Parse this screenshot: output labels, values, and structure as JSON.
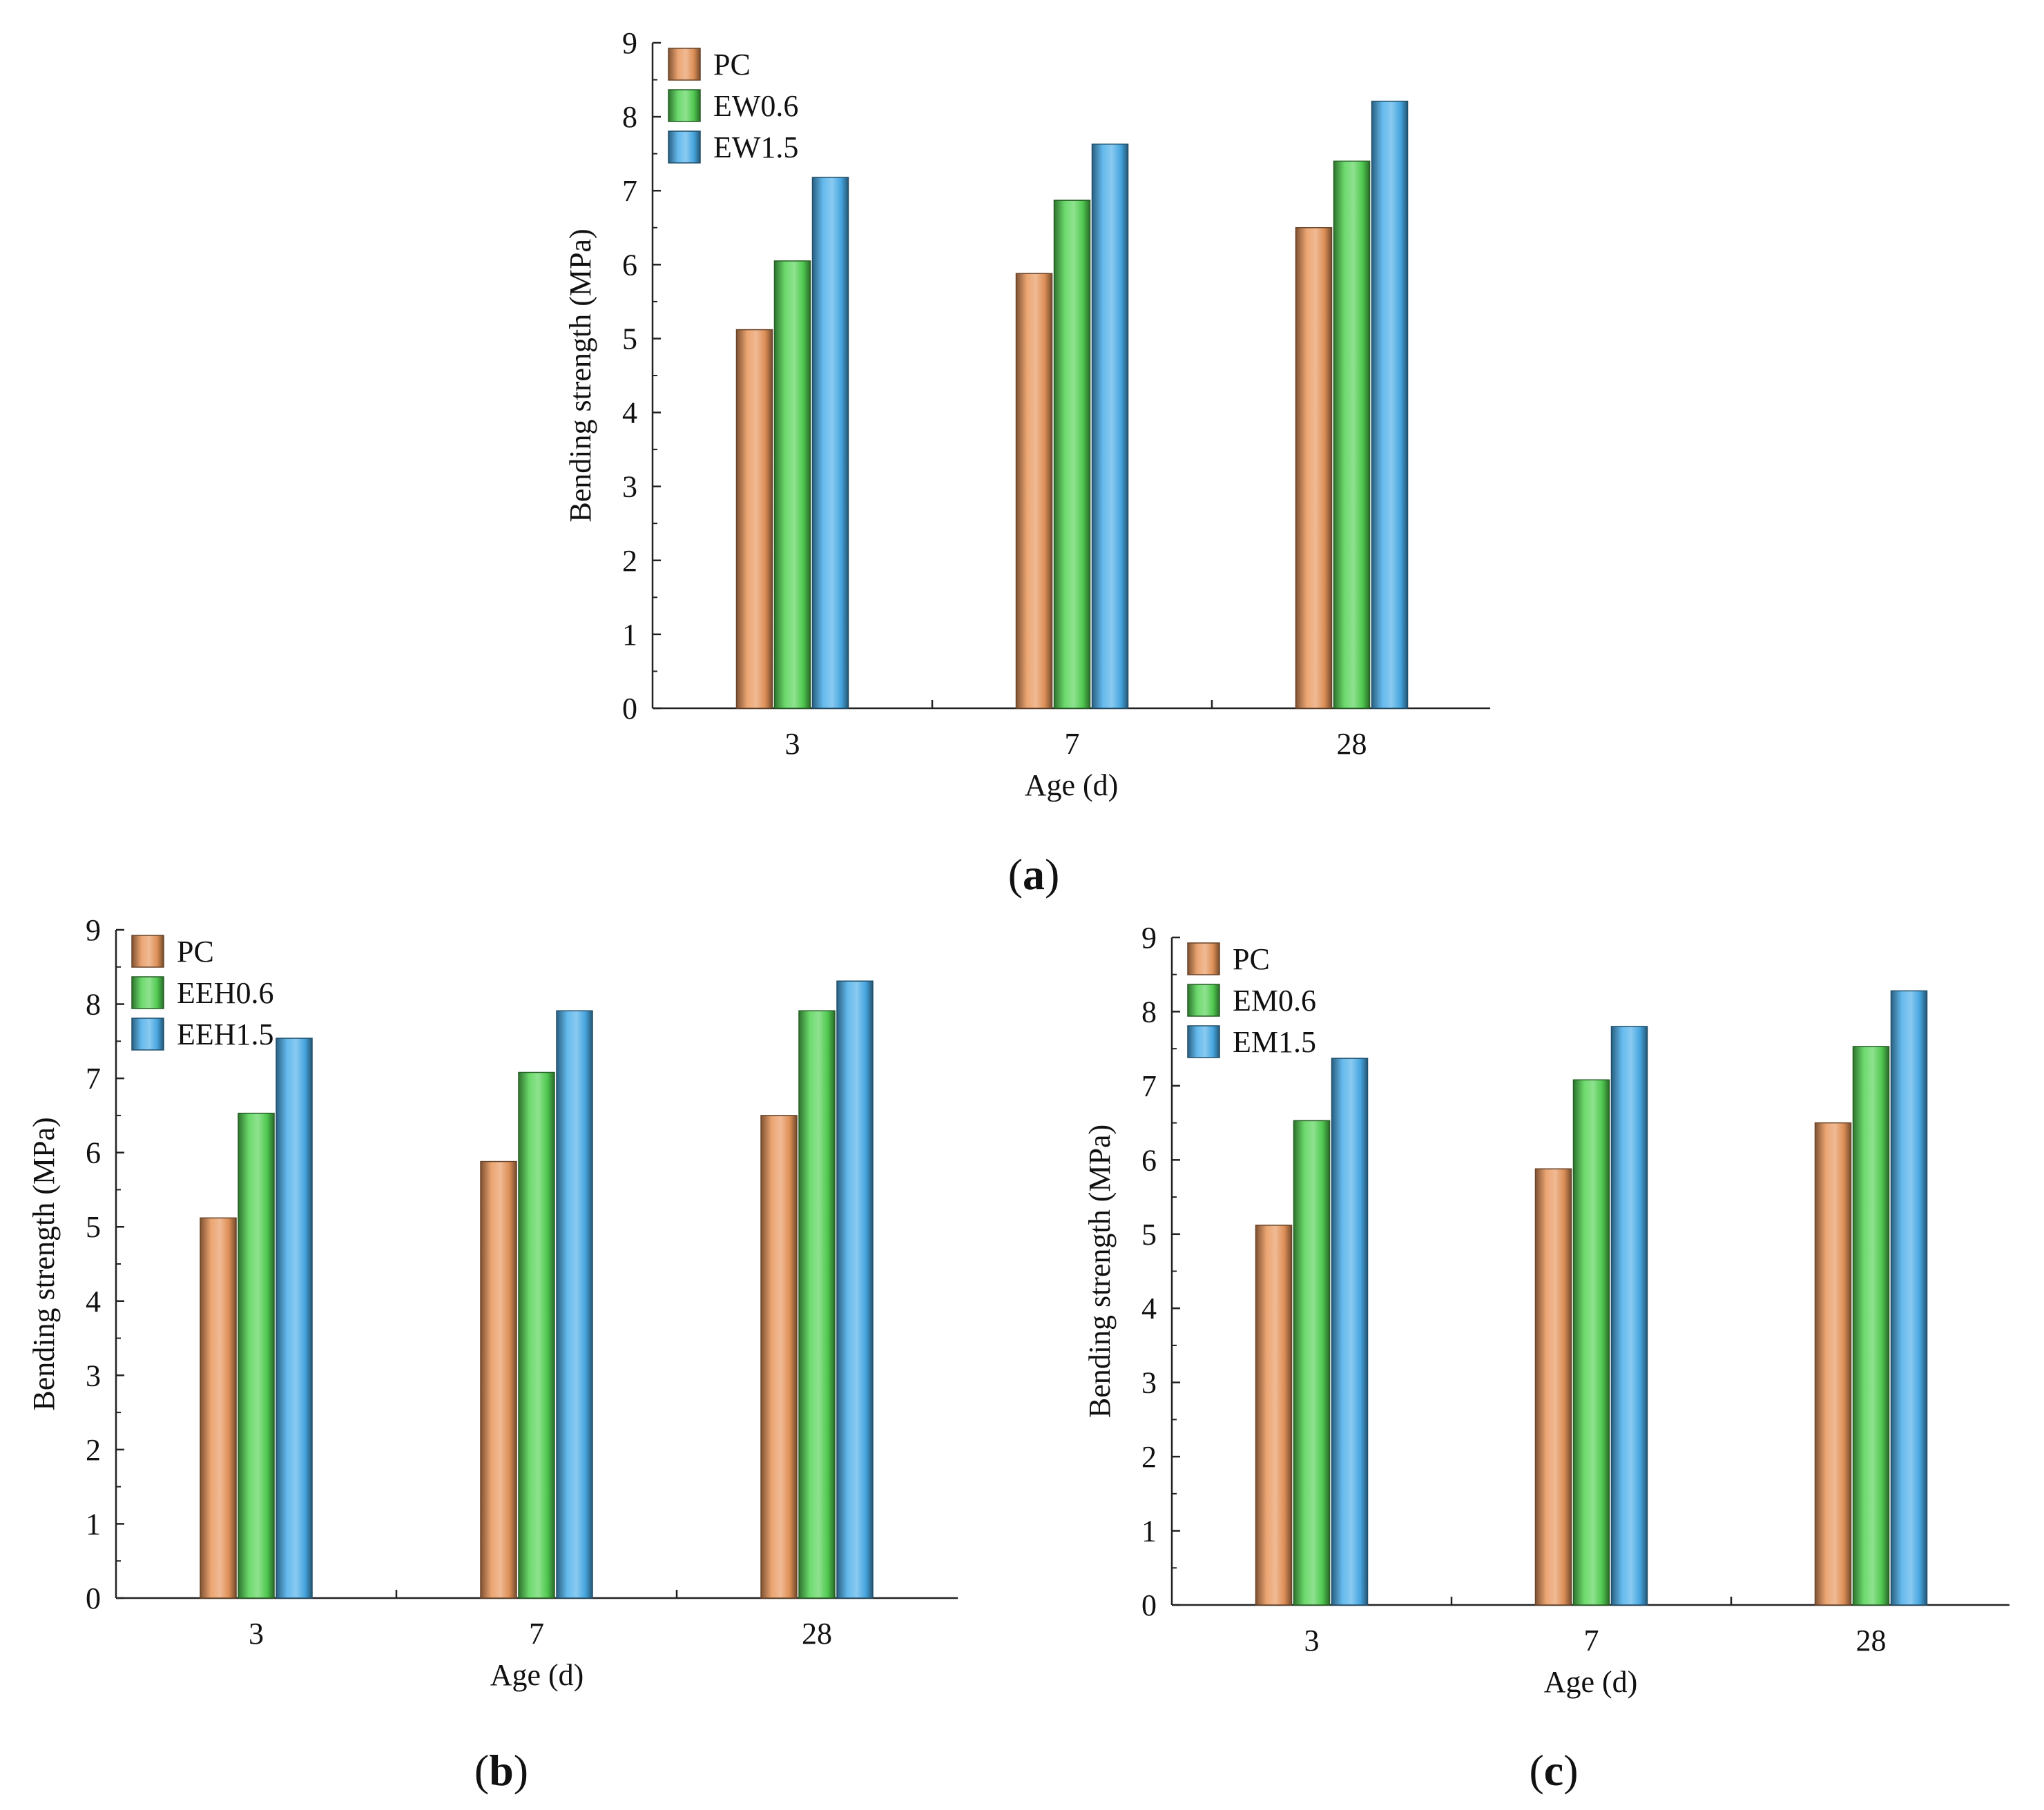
{
  "chart_data": [
    {
      "type": "bar",
      "panel": "(a)",
      "panel_letter": "a",
      "title": "",
      "xlabel": "Age (d)",
      "ylabel": "Bending strength (MPa)",
      "ylim": [
        0,
        9
      ],
      "yticks": [
        "0",
        "1",
        "2",
        "3",
        "4",
        "5",
        "6",
        "7",
        "8",
        "9"
      ],
      "categories": [
        "3",
        "7",
        "28"
      ],
      "legend_position": "top-left",
      "series": [
        {
          "name": "PC",
          "color": "#e8955a",
          "values": [
            5.12,
            5.88,
            6.5
          ]
        },
        {
          "name": "EW0.6",
          "color": "#53d353",
          "values": [
            6.05,
            6.87,
            7.4
          ]
        },
        {
          "name": "EW1.5",
          "color": "#4aaeea",
          "values": [
            7.18,
            7.63,
            8.21
          ]
        }
      ]
    },
    {
      "type": "bar",
      "panel": "(b)",
      "panel_letter": "b",
      "title": "",
      "xlabel": "Age (d)",
      "ylabel": "Bending strength (MPa)",
      "ylim": [
        0,
        9
      ],
      "yticks": [
        "0",
        "1",
        "2",
        "3",
        "4",
        "5",
        "6",
        "7",
        "8",
        "9"
      ],
      "categories": [
        "3",
        "7",
        "28"
      ],
      "legend_position": "top-left",
      "series": [
        {
          "name": "PC",
          "color": "#e8955a",
          "values": [
            5.12,
            5.88,
            6.5
          ]
        },
        {
          "name": "EEH0.6",
          "color": "#53d353",
          "values": [
            6.53,
            7.08,
            7.91
          ]
        },
        {
          "name": "EEH1.5",
          "color": "#4aaeea",
          "values": [
            7.54,
            7.91,
            8.31
          ]
        }
      ]
    },
    {
      "type": "bar",
      "panel": "(c)",
      "panel_letter": "c",
      "title": "",
      "xlabel": "Age (d)",
      "ylabel": "Bending strength (MPa)",
      "ylim": [
        0,
        9
      ],
      "yticks": [
        "0",
        "1",
        "2",
        "3",
        "4",
        "5",
        "6",
        "7",
        "8",
        "9"
      ],
      "categories": [
        "3",
        "7",
        "28"
      ],
      "legend_position": "top-left",
      "series": [
        {
          "name": "PC",
          "color": "#e8955a",
          "values": [
            5.12,
            5.88,
            6.5
          ]
        },
        {
          "name": "EM0.6",
          "color": "#53d353",
          "values": [
            6.53,
            7.08,
            7.53
          ]
        },
        {
          "name": "EM1.5",
          "color": "#4aaeea",
          "values": [
            7.37,
            7.8,
            8.28
          ]
        }
      ]
    }
  ]
}
